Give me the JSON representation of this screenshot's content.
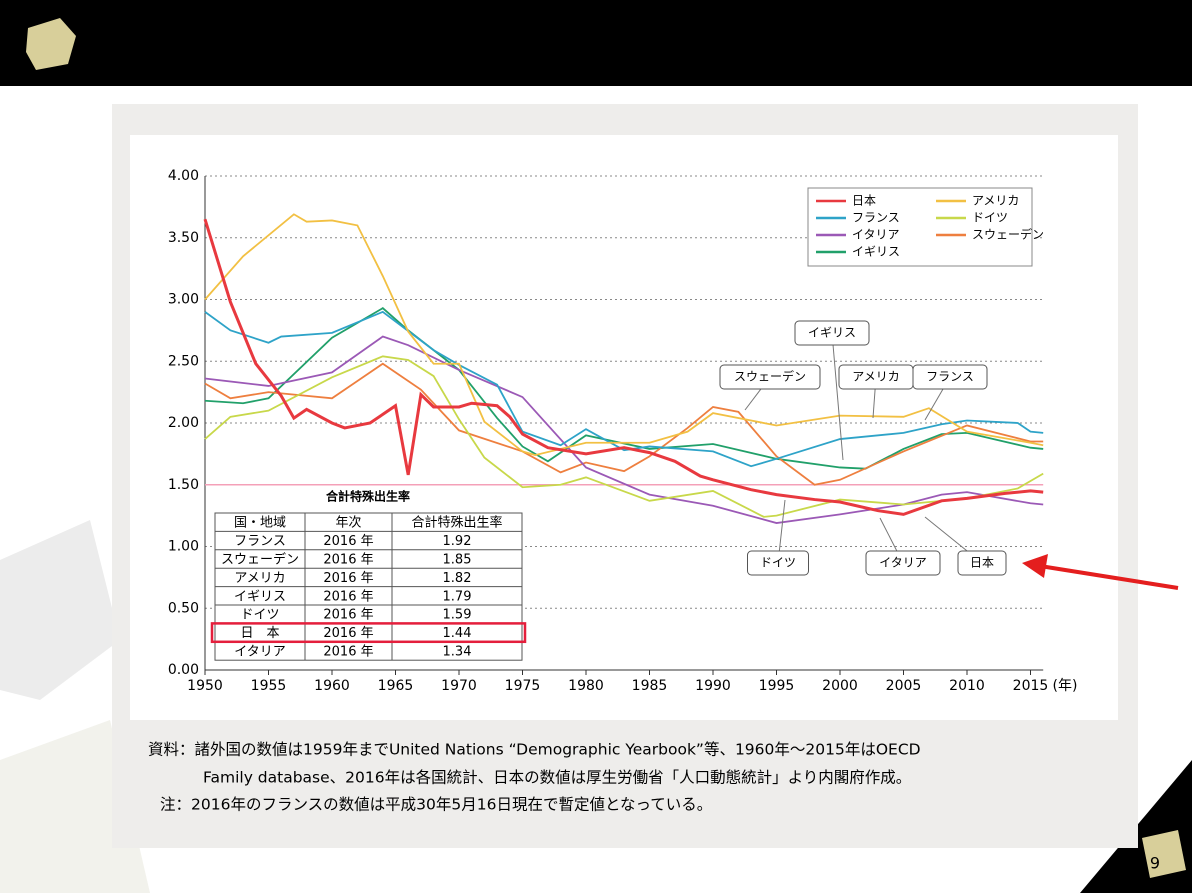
{
  "chart_data": {
    "type": "line",
    "xlim": [
      1950,
      2016
    ],
    "xticks": [
      1950,
      1955,
      1960,
      1965,
      1970,
      1975,
      1980,
      1985,
      1990,
      1995,
      2000,
      2005,
      2010,
      2015
    ],
    "x_label": "(年)",
    "ylim": [
      0,
      4
    ],
    "yticks": [
      {
        "value": 0,
        "label": "0.00"
      },
      {
        "value": 0.5,
        "label": "0.50"
      },
      {
        "value": 1,
        "label": "1.00"
      },
      {
        "value": 1.5,
        "label": "1.50"
      },
      {
        "value": 2,
        "label": "2.00"
      },
      {
        "value": 2.5,
        "label": "2.50"
      },
      {
        "value": 3,
        "label": "3.00"
      },
      {
        "value": 3.5,
        "label": "3.50"
      },
      {
        "value": 4,
        "label": "4.00"
      }
    ],
    "grid": true,
    "reference_line": 1.5,
    "legend": "top-right",
    "series": [
      {
        "name": "日本",
        "color": "#e8393f",
        "x": [
          1950,
          1952,
          1954,
          1956,
          1957,
          1958,
          1960,
          1961,
          1963,
          1965,
          1966,
          1967,
          1968,
          1970,
          1971,
          1973,
          1974,
          1975,
          1977,
          1980,
          1983,
          1985,
          1987,
          1989,
          1990,
          1993,
          1995,
          1998,
          2000,
          2003,
          2005,
          2008,
          2010,
          2013,
          2015,
          2016
        ],
        "values": [
          3.65,
          2.98,
          2.48,
          2.22,
          2.04,
          2.11,
          2.0,
          1.96,
          2.0,
          2.14,
          1.58,
          2.23,
          2.13,
          2.13,
          2.16,
          2.14,
          2.05,
          1.91,
          1.8,
          1.75,
          1.8,
          1.76,
          1.69,
          1.57,
          1.54,
          1.46,
          1.42,
          1.38,
          1.36,
          1.29,
          1.26,
          1.37,
          1.39,
          1.43,
          1.45,
          1.44
        ]
      },
      {
        "name": "アメリカ",
        "color": "#f2c043",
        "x": [
          1950,
          1953,
          1957,
          1958,
          1960,
          1962,
          1964,
          1966,
          1968,
          1970,
          1972,
          1975,
          1976,
          1980,
          1985,
          1988,
          1990,
          1995,
          2000,
          2005,
          2007,
          2010,
          2015,
          2016
        ],
        "values": [
          3.0,
          3.35,
          3.69,
          3.63,
          3.64,
          3.6,
          3.19,
          2.74,
          2.48,
          2.48,
          2.01,
          1.77,
          1.74,
          1.84,
          1.84,
          1.93,
          2.08,
          1.98,
          2.06,
          2.05,
          2.12,
          1.93,
          1.84,
          1.82
        ]
      },
      {
        "name": "フランス",
        "color": "#2ea3c8",
        "x": [
          1950,
          1952,
          1955,
          1956,
          1960,
          1964,
          1968,
          1970,
          1973,
          1975,
          1978,
          1980,
          1983,
          1985,
          1990,
          1993,
          1995,
          2000,
          2005,
          2008,
          2010,
          2014,
          2015,
          2016
        ],
        "values": [
          2.9,
          2.75,
          2.65,
          2.7,
          2.73,
          2.9,
          2.59,
          2.47,
          2.31,
          1.93,
          1.82,
          1.95,
          1.78,
          1.81,
          1.77,
          1.65,
          1.71,
          1.87,
          1.92,
          1.99,
          2.02,
          2.0,
          1.93,
          1.92
        ]
      },
      {
        "name": "ドイツ",
        "color": "#c8d84a",
        "x": [
          1950,
          1952,
          1955,
          1960,
          1964,
          1966,
          1968,
          1970,
          1972,
          1975,
          1978,
          1980,
          1985,
          1990,
          1994,
          1995,
          2000,
          2005,
          2010,
          2014,
          2016
        ],
        "values": [
          1.87,
          2.05,
          2.1,
          2.37,
          2.54,
          2.51,
          2.38,
          2.03,
          1.72,
          1.48,
          1.5,
          1.56,
          1.37,
          1.45,
          1.24,
          1.25,
          1.38,
          1.34,
          1.39,
          1.47,
          1.59
        ]
      },
      {
        "name": "イタリア",
        "color": "#9b59b6",
        "x": [
          1950,
          1955,
          1960,
          1964,
          1966,
          1970,
          1975,
          1980,
          1985,
          1990,
          1995,
          2000,
          2005,
          2008,
          2010,
          2015,
          2016
        ],
        "values": [
          2.36,
          2.3,
          2.41,
          2.7,
          2.63,
          2.43,
          2.21,
          1.64,
          1.42,
          1.33,
          1.19,
          1.26,
          1.34,
          1.42,
          1.44,
          1.35,
          1.34
        ]
      },
      {
        "name": "スウェーデン",
        "color": "#ee7f3f",
        "x": [
          1950,
          1952,
          1955,
          1960,
          1964,
          1967,
          1970,
          1975,
          1978,
          1980,
          1983,
          1985,
          1988,
          1990,
          1992,
          1995,
          1998,
          2000,
          2005,
          2010,
          2015,
          2016
        ],
        "values": [
          2.32,
          2.2,
          2.25,
          2.2,
          2.48,
          2.27,
          1.94,
          1.77,
          1.6,
          1.68,
          1.61,
          1.73,
          1.96,
          2.13,
          2.09,
          1.73,
          1.5,
          1.54,
          1.77,
          1.98,
          1.85,
          1.85
        ]
      },
      {
        "name": "イギリス",
        "color": "#21a06a",
        "x": [
          1950,
          1953,
          1955,
          1960,
          1964,
          1966,
          1970,
          1973,
          1975,
          1977,
          1980,
          1985,
          1990,
          1995,
          2000,
          2002,
          2005,
          2008,
          2010,
          2015,
          2016
        ],
        "values": [
          2.18,
          2.16,
          2.2,
          2.69,
          2.93,
          2.75,
          2.43,
          2.04,
          1.81,
          1.69,
          1.9,
          1.79,
          1.83,
          1.71,
          1.64,
          1.63,
          1.79,
          1.91,
          1.92,
          1.8,
          1.79
        ]
      }
    ],
    "annotations": [
      "スウェーデン",
      "イギリス",
      "アメリカ",
      "フランス",
      "ドイツ",
      "イタリア",
      "日本"
    ],
    "table": {
      "title": "合計特殊出生率",
      "header": [
        "国・地域",
        "年次",
        "合計特殊出生率"
      ],
      "rows": [
        [
          "フランス",
          "2016 年",
          "1.92"
        ],
        [
          "スウェーデン",
          "2016 年",
          "1.85"
        ],
        [
          "アメリカ",
          "2016 年",
          "1.82"
        ],
        [
          "イギリス",
          "2016 年",
          "1.79"
        ],
        [
          "ドイツ",
          "2016 年",
          "1.59"
        ],
        [
          "日　本",
          "2016 年",
          "1.44"
        ],
        [
          "イタリア",
          "2016 年",
          "1.34"
        ]
      ]
    }
  },
  "source": [
    "資料：諸外国の数値は1959年までUnited Nations “Demographic Yearbook”等、1960年～2015年はOECD",
    "Family database、2016年は各国統計、日本の数値は厚生労働省「人口動態統計」より内閣府作成。"
  ],
  "note": "注：2016年のフランスの数値は平成30年5月16日現在で暫定値となっている。",
  "page_number": "9"
}
